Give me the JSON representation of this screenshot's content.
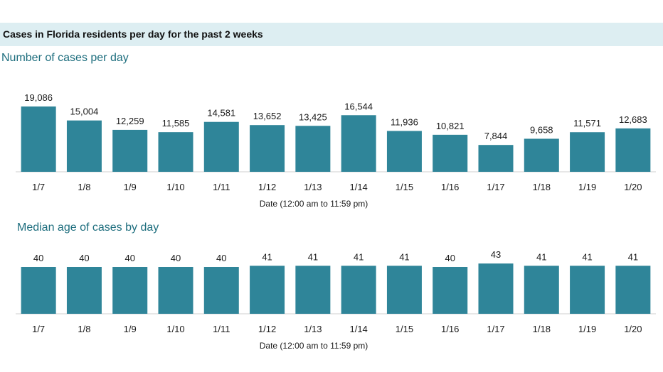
{
  "header": {
    "title": "Cases in Florida residents per day for the past 2 weeks"
  },
  "colors": {
    "bar": "#2f8599",
    "banner": "#ddeef2",
    "subtitle": "#1e6e7e",
    "axis": "#cfcfcf"
  },
  "chart_data": [
    {
      "type": "bar",
      "title": "Number of cases per day",
      "xlabel": "Date (12:00 am to 11:59 pm)",
      "ylabel": "",
      "ylim": [
        0,
        19086
      ],
      "grid": false,
      "categories": [
        "1/7",
        "1/8",
        "1/9",
        "1/10",
        "1/11",
        "1/12",
        "1/13",
        "1/14",
        "1/15",
        "1/16",
        "1/17",
        "1/18",
        "1/19",
        "1/20"
      ],
      "values": [
        19086,
        15004,
        12259,
        11585,
        14581,
        13652,
        13425,
        16544,
        11936,
        10821,
        7844,
        9658,
        11571,
        12683
      ],
      "labels": [
        "19,086",
        "15,004",
        "12,259",
        "11,585",
        "14,581",
        "13,652",
        "13,425",
        "16,544",
        "11,936",
        "10,821",
        "7,844",
        "9,658",
        "11,571",
        "12,683"
      ]
    },
    {
      "type": "bar",
      "title": "Median age of cases by day",
      "xlabel": "Date (12:00 am to 11:59 pm)",
      "ylabel": "",
      "ylim": [
        0,
        43
      ],
      "grid": false,
      "categories": [
        "1/7",
        "1/8",
        "1/9",
        "1/10",
        "1/11",
        "1/12",
        "1/13",
        "1/14",
        "1/15",
        "1/16",
        "1/17",
        "1/18",
        "1/19",
        "1/20"
      ],
      "values": [
        40,
        40,
        40,
        40,
        40,
        41,
        41,
        41,
        41,
        40,
        43,
        41,
        41,
        41
      ],
      "labels": [
        "40",
        "40",
        "40",
        "40",
        "40",
        "41",
        "41",
        "41",
        "41",
        "40",
        "43",
        "41",
        "41",
        "41"
      ]
    }
  ]
}
